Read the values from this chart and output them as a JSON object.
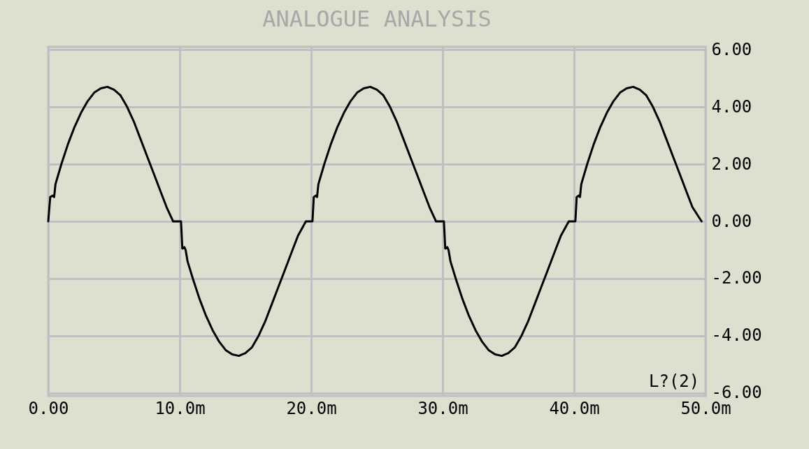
{
  "chart_data": {
    "type": "line",
    "title": "ANALOGUE ANALYSIS",
    "x": [
      0,
      0.15,
      0.35,
      0.45,
      0.55,
      1,
      1.5,
      2,
      2.5,
      3,
      3.5,
      4,
      4.5,
      5,
      5.5,
      6,
      6.5,
      7,
      7.5,
      8,
      8.5,
      9,
      9.5,
      10.1,
      10.2,
      10.35,
      10.45,
      10.6,
      11,
      11.5,
      12,
      12.5,
      13,
      13.5,
      14,
      14.5,
      15,
      15.5,
      16,
      16.5,
      17,
      17.5,
      18,
      18.5,
      19,
      19.6,
      20.1,
      20.2,
      20.35,
      20.45,
      20.55,
      21,
      21.5,
      22,
      22.5,
      23,
      23.5,
      24,
      24.5,
      25,
      25.5,
      26,
      26.5,
      27,
      27.5,
      28,
      28.5,
      29,
      29.5,
      30.1,
      30.2,
      30.35,
      30.45,
      30.6,
      31,
      31.5,
      32,
      32.5,
      33,
      33.5,
      34,
      34.5,
      35,
      35.5,
      36,
      36.5,
      37,
      37.5,
      38,
      38.5,
      39,
      39.6,
      40.1,
      40.2,
      40.35,
      40.45,
      40.55,
      41,
      41.5,
      42,
      42.5,
      43,
      43.5,
      44,
      44.5,
      45,
      45.5,
      46,
      46.5,
      47,
      47.5,
      48,
      48.5,
      49,
      49.7
    ],
    "series": [
      {
        "name": "L?(2)",
        "color": "#000000",
        "values": [
          0,
          0.85,
          0.9,
          0.85,
          1.3,
          2.0,
          2.7,
          3.3,
          3.8,
          4.2,
          4.5,
          4.65,
          4.7,
          4.6,
          4.4,
          4.0,
          3.5,
          2.9,
          2.3,
          1.7,
          1.1,
          0.5,
          0,
          0,
          -0.95,
          -0.9,
          -1.0,
          -1.4,
          -2.0,
          -2.7,
          -3.3,
          -3.8,
          -4.2,
          -4.5,
          -4.65,
          -4.7,
          -4.6,
          -4.4,
          -4.0,
          -3.5,
          -2.9,
          -2.3,
          -1.7,
          -1.1,
          -0.5,
          0,
          0,
          0.85,
          0.9,
          0.85,
          1.3,
          2.0,
          2.7,
          3.3,
          3.8,
          4.2,
          4.5,
          4.65,
          4.7,
          4.6,
          4.4,
          4.0,
          3.5,
          2.9,
          2.3,
          1.7,
          1.1,
          0.5,
          0,
          0,
          -0.95,
          -0.9,
          -1.0,
          -1.4,
          -2.0,
          -2.7,
          -3.3,
          -3.8,
          -4.2,
          -4.5,
          -4.65,
          -4.7,
          -4.6,
          -4.4,
          -4.0,
          -3.5,
          -2.9,
          -2.3,
          -1.7,
          -1.1,
          -0.5,
          0,
          0,
          0.85,
          0.9,
          0.85,
          1.3,
          2.0,
          2.7,
          3.3,
          3.8,
          4.2,
          4.5,
          4.65,
          4.7,
          4.6,
          4.4,
          4.0,
          3.5,
          2.9,
          2.3,
          1.7,
          1.1,
          0.5,
          0
        ]
      }
    ],
    "xlim": [
      0,
      50
    ],
    "xticks": [
      {
        "value": 0,
        "label": "0.00"
      },
      {
        "value": 10,
        "label": "10.0m"
      },
      {
        "value": 20,
        "label": "20.0m"
      },
      {
        "value": 30,
        "label": "30.0m"
      },
      {
        "value": 40,
        "label": "40.0m"
      },
      {
        "value": 50,
        "label": "50.0m"
      }
    ],
    "ylim": [
      -6.1,
      6.1
    ],
    "yticks": [
      {
        "value": -6,
        "label": "-6.00"
      },
      {
        "value": -4,
        "label": "-4.00"
      },
      {
        "value": -2,
        "label": "-2.00"
      },
      {
        "value": 0,
        "label": "0.00"
      },
      {
        "value": 2,
        "label": "2.00"
      },
      {
        "value": 4,
        "label": "4.00"
      },
      {
        "value": 6,
        "label": "6.00"
      }
    ],
    "grid": true,
    "legend": "bottom right",
    "marker": "none",
    "line_style": "solid"
  }
}
